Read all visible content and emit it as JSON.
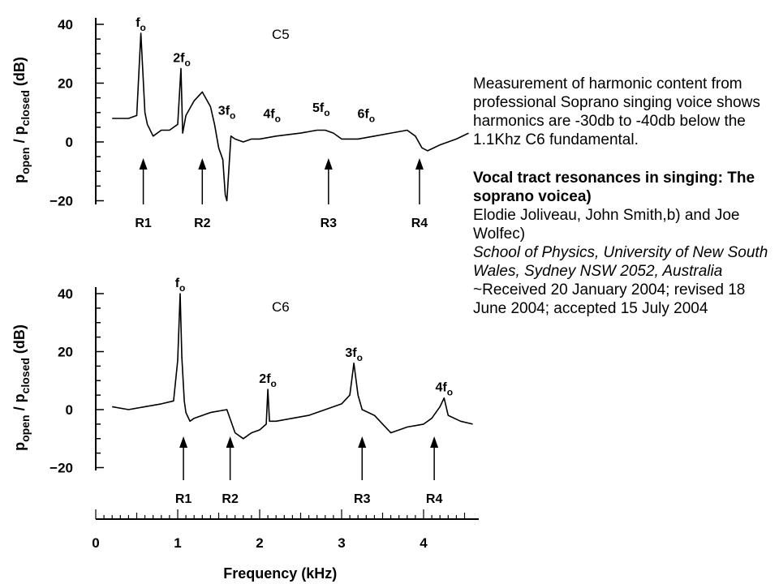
{
  "chart_data": [
    {
      "type": "line",
      "panel_label": "C5",
      "ylabel": "p_open / p_closed (dB)",
      "ylabel_parts": {
        "p1": "p",
        "sub1": "open",
        "slash": "/ p",
        "sub2": "closed",
        "unit": "(dB)"
      },
      "ylim": [
        -20,
        40
      ],
      "y_ticks": [
        40,
        20,
        0,
        -20
      ],
      "xlim": [
        0,
        4.5
      ],
      "x": [
        0.2,
        0.4,
        0.5,
        0.55,
        0.6,
        0.63,
        0.7,
        0.8,
        0.9,
        1.0,
        1.04,
        1.06,
        1.1,
        1.2,
        1.3,
        1.4,
        1.45,
        1.5,
        1.55,
        1.58,
        1.6,
        1.65,
        1.7,
        1.8,
        1.9,
        2.0,
        2.2,
        2.5,
        2.7,
        2.8,
        2.9,
        3.0,
        3.2,
        3.4,
        3.6,
        3.8,
        3.9,
        3.98,
        4.05,
        4.2,
        4.4,
        4.55
      ],
      "y": [
        8,
        8,
        9,
        37,
        10,
        6,
        2,
        4,
        4,
        6,
        25,
        3,
        9,
        14,
        17,
        12,
        6,
        -2,
        -6,
        -18,
        -20,
        2,
        1,
        0,
        1,
        1,
        2,
        3,
        4,
        4,
        3,
        1,
        1,
        2,
        3,
        4,
        2,
        -2,
        -3,
        -1,
        1,
        3
      ],
      "harmonic_labels": [
        {
          "label": "f",
          "sub": "o",
          "x": 0.55,
          "y": 37
        },
        {
          "label": "2f",
          "sub": "o",
          "x": 1.05,
          "y": 25
        },
        {
          "label": "3f",
          "sub": "o",
          "x": 1.6,
          "y": 7
        },
        {
          "label": "4f",
          "sub": "o",
          "x": 2.15,
          "y": 6
        },
        {
          "label": "5f",
          "sub": "o",
          "x": 2.75,
          "y": 8
        },
        {
          "label": "6f",
          "sub": "o",
          "x": 3.3,
          "y": 6
        }
      ],
      "resonances": [
        {
          "label": "R1",
          "x": 0.58
        },
        {
          "label": "R2",
          "x": 1.3
        },
        {
          "label": "R3",
          "x": 2.84
        },
        {
          "label": "R4",
          "x": 3.95
        }
      ]
    },
    {
      "type": "line",
      "panel_label": "C6",
      "ylabel": "p_open / p_closed (dB)",
      "ylabel_parts": {
        "p1": "p",
        "sub1": "open",
        "slash": "/ p",
        "sub2": "closed",
        "unit": "(dB)"
      },
      "xlabel": "Frequency (kHz)",
      "ylim": [
        -20,
        40
      ],
      "y_ticks": [
        40,
        20,
        0,
        -20
      ],
      "x_ticks": [
        0,
        1,
        2,
        3,
        4
      ],
      "xlim": [
        0,
        4.5
      ],
      "x": [
        0.2,
        0.4,
        0.6,
        0.8,
        0.95,
        1.0,
        1.03,
        1.05,
        1.08,
        1.1,
        1.15,
        1.2,
        1.4,
        1.6,
        1.7,
        1.8,
        1.9,
        2.0,
        2.08,
        2.1,
        2.12,
        2.2,
        2.4,
        2.6,
        2.8,
        3.0,
        3.1,
        3.15,
        3.2,
        3.25,
        3.4,
        3.6,
        3.8,
        4.0,
        4.1,
        4.2,
        4.25,
        4.3,
        4.45,
        4.6
      ],
      "y": [
        1,
        0,
        1,
        2,
        3,
        17,
        40,
        18,
        3,
        -1,
        -4,
        -3,
        -1,
        0,
        -8,
        -10,
        -8,
        -7,
        -5,
        7,
        -4,
        -4,
        -3,
        -2,
        0,
        2,
        5,
        16,
        5,
        0,
        -2,
        -8,
        -6,
        -5,
        -3,
        1,
        4,
        -2,
        -4,
        -5
      ],
      "harmonic_labels": [
        {
          "label": "f",
          "sub": "o",
          "x": 1.03,
          "y": 40
        },
        {
          "label": "2f",
          "sub": "o",
          "x": 2.1,
          "y": 7
        },
        {
          "label": "3f",
          "sub": "o",
          "x": 3.15,
          "y": 16
        },
        {
          "label": "4f",
          "sub": "o",
          "x": 4.25,
          "y": 4
        }
      ],
      "resonances": [
        {
          "label": "R1",
          "x": 1.07
        },
        {
          "label": "R2",
          "x": 1.64
        },
        {
          "label": "R3",
          "x": 3.25
        },
        {
          "label": "R4",
          "x": 4.13
        }
      ]
    }
  ],
  "text_panel": {
    "summary": "Measurement of harmonic content from professional Soprano  singing  voice shows harmonics are  -30db to -40db below the 1.1Khz C6 fundamental.",
    "citation_title": "Vocal tract resonances in singing: The soprano voicea)",
    "authors": "Elodie Joliveau,  John Smith,b) and Joe Wolfec)",
    "affiliation": "School of Physics, University of New South Wales, Sydney NSW 2052, Australia",
    "received": "~Received 20 January 2004; revised 18 June 2004; accepted 15 July 2004"
  }
}
